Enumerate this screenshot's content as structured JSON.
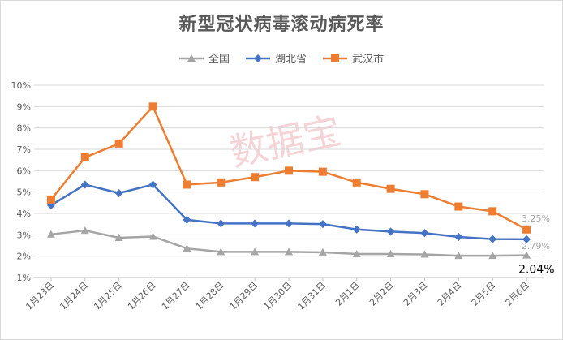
{
  "chart_data": {
    "type": "line",
    "title": "新型冠状病毒滚动病死率",
    "categories": [
      "1月23日",
      "1月24日",
      "1月25日",
      "1月26日",
      "1月27日",
      "1月28日",
      "1月29日",
      "1月30日",
      "1月31日",
      "2月1日",
      "2月2日",
      "2月3日",
      "2月4日",
      "2月5日",
      "2月6日"
    ],
    "series": [
      {
        "name": "全国",
        "color": "#a5a5a5",
        "marker": "triangle",
        "values": [
          3.02,
          3.2,
          2.86,
          2.92,
          2.36,
          2.2,
          2.2,
          2.2,
          2.18,
          2.1,
          2.1,
          2.08,
          2.02,
          2.02,
          2.04
        ]
      },
      {
        "name": "湖北省",
        "color": "#4472c4",
        "marker": "diamond",
        "values": [
          4.38,
          5.35,
          4.95,
          5.35,
          3.7,
          3.53,
          3.53,
          3.53,
          3.5,
          3.25,
          3.15,
          3.08,
          2.9,
          2.8,
          2.79
        ]
      },
      {
        "name": "武汉市",
        "color": "#ed7d31",
        "marker": "square",
        "values": [
          4.65,
          6.62,
          7.27,
          9.0,
          5.35,
          5.45,
          5.7,
          6.0,
          5.95,
          5.45,
          5.15,
          4.9,
          4.32,
          4.1,
          3.25
        ]
      }
    ],
    "ylim": [
      1,
      10
    ],
    "yticks": [
      "1%",
      "2%",
      "3%",
      "4%",
      "5%",
      "6%",
      "7%",
      "8%",
      "9%",
      "10%"
    ],
    "grid": true,
    "legend": "top",
    "end_labels": [
      "2.04%",
      "2.79%",
      "3.25%"
    ],
    "watermark": "数据宝"
  }
}
